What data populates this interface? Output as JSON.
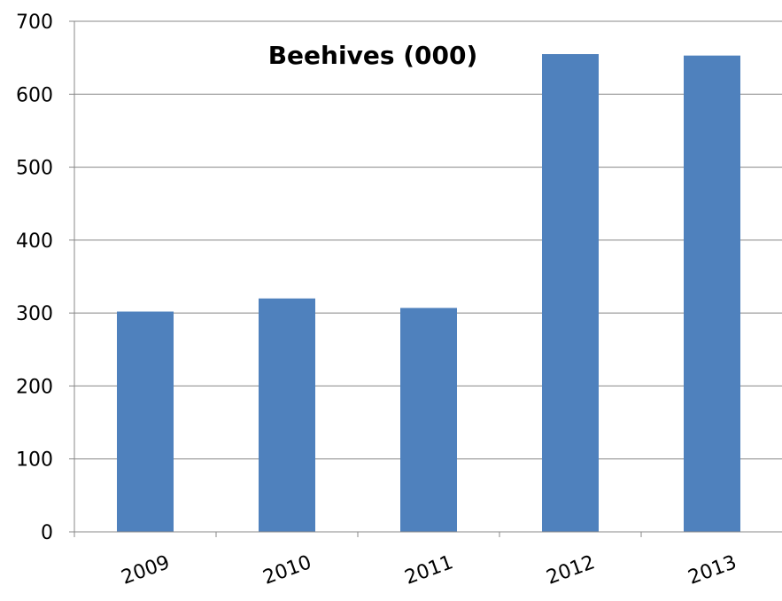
{
  "chart_data": {
    "type": "bar",
    "title": "Beehives (000)",
    "xlabel": "",
    "ylabel": "",
    "categories": [
      "2009",
      "2010",
      "2011",
      "2012",
      "2013"
    ],
    "values": [
      302,
      320,
      307,
      655,
      653
    ],
    "ylim": [
      0,
      700
    ],
    "yticks": [
      "0",
      "100",
      "200",
      "300",
      "400",
      "500",
      "600",
      "700"
    ],
    "grid": true,
    "legend": "none",
    "colors": {
      "bar": "#4F81BD",
      "grid": "#888888",
      "axis": "#888888"
    }
  }
}
